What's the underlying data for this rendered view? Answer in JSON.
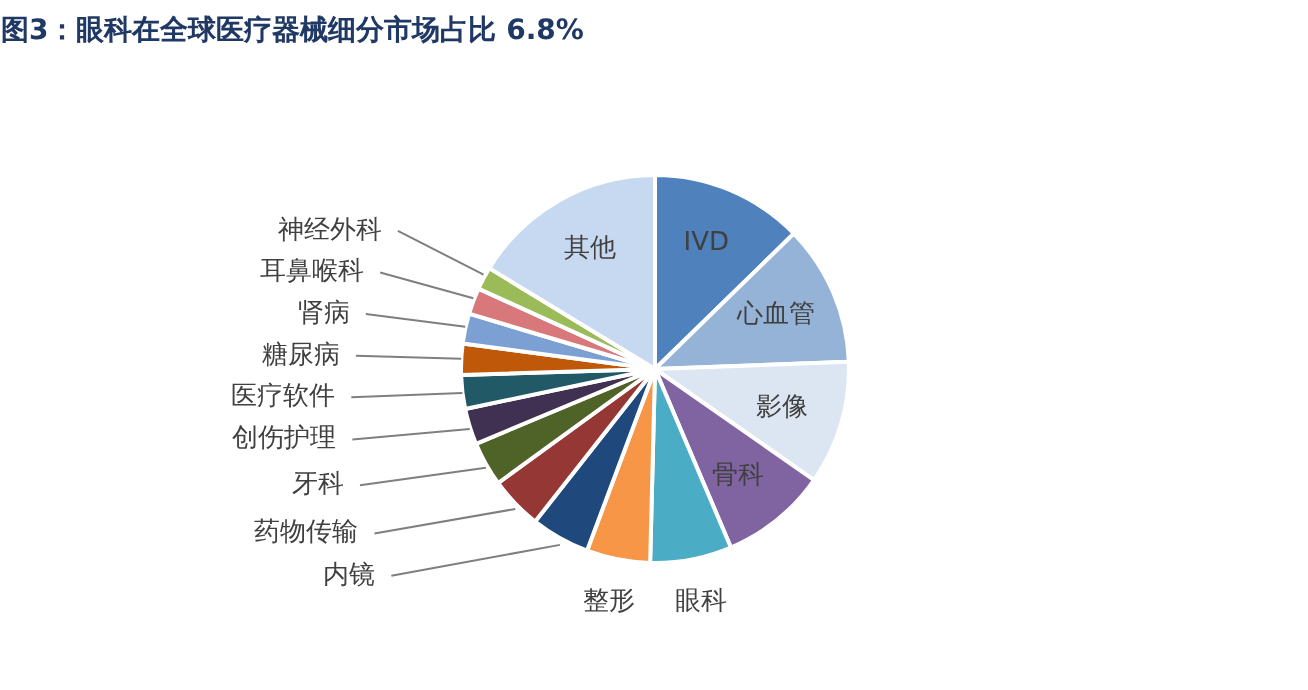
{
  "chart_data": {
    "type": "pie",
    "title": "图3：眼科在全球医疗器械细分市场占比 6.8%",
    "categories": [
      "IVD",
      "心血管",
      "影像",
      "骨科",
      "眼科",
      "整形",
      "内镜",
      "药物传输",
      "牙科",
      "创伤护理",
      "医疗软件",
      "糖尿病",
      "肾病",
      "耳鼻喉科",
      "神经外科",
      "其他"
    ],
    "values": [
      12.7,
      11.7,
      10.3,
      8.9,
      6.8,
      5.3,
      4.9,
      4.4,
      3.7,
      3.0,
      2.8,
      2.6,
      2.5,
      2.2,
      1.9,
      16.3
    ],
    "colors": [
      "#4f81bd",
      "#95b3d7",
      "#dce6f2",
      "#8064a2",
      "#4bacc6",
      "#f79646",
      "#1f497d",
      "#953735",
      "#4f6228",
      "#403152",
      "#215967",
      "#c0580a",
      "#7ca0d4",
      "#d9787a",
      "#9bbb59",
      "#c6d9f1"
    ]
  }
}
